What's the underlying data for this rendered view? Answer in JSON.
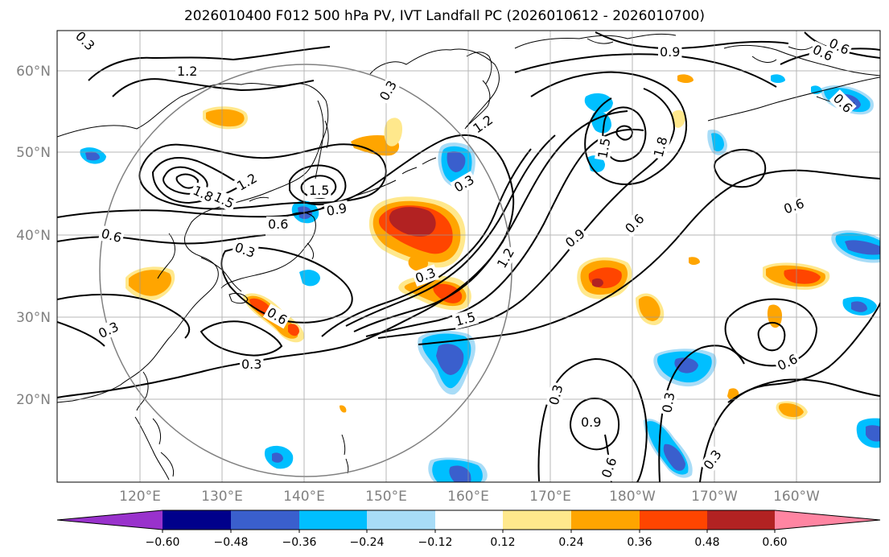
{
  "title": "2026010400 F012 500 hPa PV, IVT Landfall PC (2026010612 - 2026010700)",
  "lat_labels": [
    "60°N",
    "50°N",
    "40°N",
    "30°N",
    "20°N"
  ],
  "lon_labels": [
    "120°E",
    "130°E",
    "140°E",
    "150°E",
    "160°E",
    "170°E",
    "180°W",
    "170°W",
    "160°W"
  ],
  "colorbar": {
    "ticks": [
      "−0.60",
      "−0.48",
      "−0.36",
      "−0.24",
      "−0.12",
      "0.12",
      "0.24",
      "0.36",
      "0.48",
      "0.60"
    ],
    "colors": [
      "#9932cc",
      "#00008b",
      "#3a5fcd",
      "#00bfff",
      "#a8dcf7",
      "#ffffff",
      "#ffe88c",
      "#ffa500",
      "#ff4500",
      "#b22222",
      "#ff85a2"
    ]
  },
  "contour_labels": [
    "0.3",
    "1.2",
    "0.3",
    "1.2",
    "0.9",
    "0.6",
    "1.8",
    "1.5",
    "1.2",
    "1.5",
    "0.9",
    "0.6",
    "0.6",
    "0.3",
    "0.6",
    "0.6",
    "0.3",
    "0.3",
    "1.5",
    "1.2",
    "0.9",
    "0.6",
    "1.5",
    "1.8",
    "0.3",
    "0.6",
    "0.6",
    "0.3",
    "0.9",
    "0.3",
    "0.6",
    "0.3",
    "0.3",
    "0.6"
  ]
}
